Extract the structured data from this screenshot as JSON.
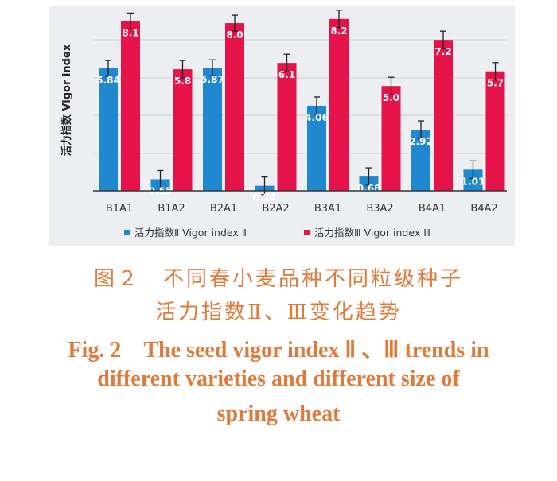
{
  "chart_data": {
    "type": "bar",
    "ylabel": "活力指数 Vigor index",
    "categories": [
      "B1A1",
      "B1A2",
      "B2A1",
      "B2A2",
      "B3A1",
      "B3A2",
      "B4A1",
      "B4A2"
    ],
    "series": [
      {
        "name": "活力指数Ⅱ Vigor index Ⅱ",
        "color": "#1f88cf",
        "values": [
          5.84,
          0.55,
          5.87,
          0.24,
          4.06,
          0.68,
          2.92,
          1.01
        ],
        "labels": [
          "5.84",
          "0.55",
          "5.87",
          "0.24",
          "4.06",
          "0.68",
          "2.92",
          "1.01"
        ]
      },
      {
        "name": "活力指数Ⅲ Vigor index Ⅲ",
        "color": "#e5134a",
        "values": [
          8.1,
          5.8,
          8.0,
          6.1,
          8.2,
          5.0,
          7.2,
          5.7
        ],
        "labels": [
          "8.1",
          "5.8",
          "8.0",
          "6.1",
          "8.2",
          "5.0",
          "7.2",
          "5.7"
        ]
      }
    ],
    "grid": true,
    "legend": "bottom",
    "error_bars": true
  },
  "caption": {
    "cn_line1": "图２　不同春小麦品种不同粒级种子",
    "cn_line2": "活力指数Ⅱ、Ⅲ变化趋势",
    "en_line1": "Fig. 2　The seed vigor index Ⅱ 、Ⅲ trends in",
    "en_line2": "different varieties and different size of",
    "en_line3": "spring wheat"
  }
}
